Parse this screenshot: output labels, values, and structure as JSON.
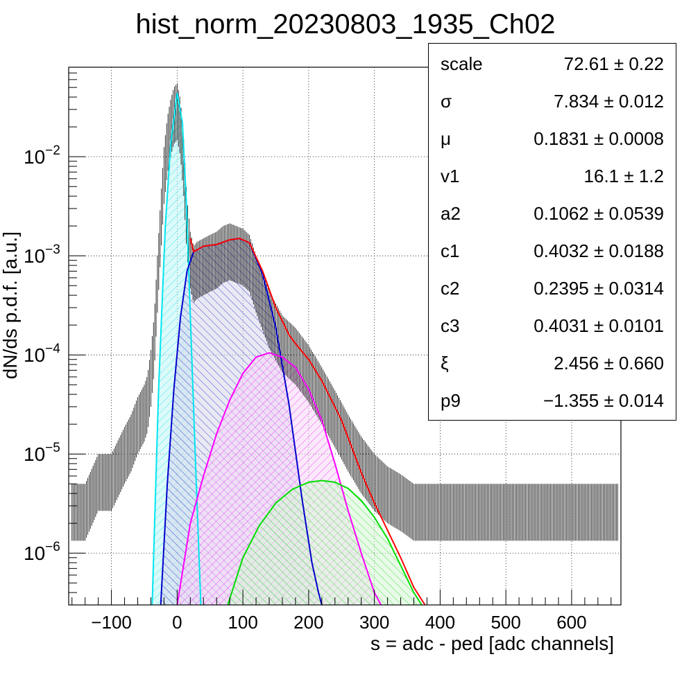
{
  "chart_data": {
    "type": "line",
    "title": "hist_norm_20230803_1935_Ch02",
    "xlabel": "s = adc - ped [adc channels]",
    "ylabel": "dN/ds p.d.f. [a.u.]",
    "xlim": [
      -165,
      675
    ],
    "ylim": [
      3e-07,
      0.08
    ],
    "yscale": "log",
    "grid": true,
    "x_ticks": [
      -100,
      0,
      100,
      200,
      300,
      400,
      500,
      600
    ],
    "x_tick_labels": [
      "−100",
      "0",
      "100",
      "200",
      "300",
      "400",
      "500",
      "600"
    ],
    "y_ticks": [
      1e-06,
      1e-05,
      0.0001,
      0.001,
      0.01
    ],
    "y_tick_labels": [
      {
        "base": "10",
        "exp": "−6"
      },
      {
        "base": "10",
        "exp": "−5"
      },
      {
        "base": "10",
        "exp": "−4"
      },
      {
        "base": "10",
        "exp": "−3"
      },
      {
        "base": "10",
        "exp": "−2"
      }
    ],
    "series": [
      {
        "color": "#00e5ee",
        "fill": "#bff6f6",
        "x": [
          -38,
          -28,
          -18,
          -10,
          0,
          8,
          14,
          20,
          28,
          36
        ],
        "y": [
          3e-07,
          5e-05,
          0.002,
          0.013,
          0.044,
          0.022,
          0.0035,
          0.00025,
          8e-06,
          3e-07
        ]
      },
      {
        "color": "#0000cc",
        "fill": "#d6d6ea",
        "x": [
          -25,
          -15,
          -5,
          5,
          15,
          25,
          40,
          60,
          80,
          95,
          110,
          130,
          150,
          170,
          190,
          205,
          215,
          220
        ],
        "y": [
          3e-07,
          5e-06,
          4.5e-05,
          0.00024,
          0.0007,
          0.0011,
          0.00125,
          0.0013,
          0.00145,
          0.0015,
          0.00135,
          0.00065,
          0.00019,
          3.2e-05,
          3.5e-06,
          8e-07,
          4e-07,
          3e-07
        ]
      },
      {
        "color": "#ff00ff",
        "fill": "#f5d6f5",
        "x": [
          0,
          20,
          40,
          60,
          80,
          100,
          120,
          140,
          160,
          180,
          200,
          220,
          240,
          260,
          280,
          300,
          310
        ],
        "y": [
          3e-07,
          2e-06,
          6e-06,
          1.6e-05,
          3.5e-05,
          6.5e-05,
          9.5e-05,
          0.000105,
          9.5e-05,
          7.5e-05,
          4.5e-05,
          2.2e-05,
          8e-06,
          2.7e-06,
          1e-06,
          4e-07,
          3e-07
        ]
      },
      {
        "color": "#00dd00",
        "fill": "#d6f5d6",
        "x": [
          77,
          100,
          125,
          150,
          175,
          200,
          220,
          240,
          260,
          280,
          300,
          320,
          340,
          360,
          372
        ],
        "y": [
          3e-07,
          9e-07,
          1.9e-06,
          3.2e-06,
          4.4e-06,
          5.2e-06,
          5.4e-06,
          5.2e-06,
          4.5e-06,
          3.4e-06,
          2.3e-06,
          1.4e-06,
          7.5e-07,
          4e-07,
          3e-07
        ]
      },
      {
        "color": "#ff0000",
        "fill": null,
        "x": [
          20,
          25,
          40,
          60,
          80,
          95,
          110,
          130,
          150,
          170,
          180,
          200,
          220,
          250,
          280,
          300,
          320,
          340,
          360,
          377
        ],
        "y": [
          0.0015,
          0.0011,
          0.00125,
          0.0013,
          0.00145,
          0.0015,
          0.00135,
          0.0007,
          0.0003,
          0.00016,
          0.00013,
          9e-05,
          5.5e-05,
          2.2e-05,
          6.5e-06,
          3.2e-06,
          1.7e-06,
          9e-07,
          4.5e-07,
          3e-07
        ]
      }
    ],
    "data_envelope": {
      "x": [
        -160,
        -140,
        -120,
        -100,
        -80,
        -70,
        -60,
        -50,
        -45,
        -40,
        -35,
        -30,
        -25,
        -20,
        -15,
        -10,
        -5,
        0,
        5,
        10,
        15,
        20,
        25,
        30,
        40,
        50,
        60,
        70,
        80,
        90,
        100,
        110,
        120,
        140,
        160,
        180,
        200,
        220,
        240,
        260,
        280,
        300,
        320,
        340,
        360,
        380,
        400,
        420,
        440,
        460,
        480,
        500,
        520,
        540,
        560,
        580,
        600,
        620,
        640,
        660
      ],
      "y": [
        4e-06,
        4e-06,
        8e-06,
        8e-06,
        1.5e-05,
        2e-05,
        3e-05,
        4e-05,
        5e-05,
        9e-05,
        0.0002,
        0.0008,
        0.003,
        0.01,
        0.02,
        0.03,
        0.04,
        0.044,
        0.03,
        0.012,
        0.003,
        0.0014,
        0.001,
        0.0011,
        0.0012,
        0.0013,
        0.0014,
        0.0016,
        0.0017,
        0.0016,
        0.0015,
        0.0013,
        0.0008,
        0.00035,
        0.0002,
        0.00015,
        0.0001,
        6e-05,
        3.5e-05,
        2e-05,
        1.2e-05,
        8e-06,
        6e-06,
        5e-06,
        4e-06,
        4e-06,
        4e-06,
        4e-06,
        4e-06,
        4e-06,
        4e-06,
        4e-06,
        4e-06,
        4e-06,
        4e-06,
        4e-06,
        4e-06,
        4e-06,
        4e-06,
        4e-06
      ]
    }
  },
  "stats": [
    {
      "name": "scale",
      "value": "72.61 ± 0.22"
    },
    {
      "name": "σ",
      "value": "7.834 ± 0.012"
    },
    {
      "name": "μ",
      "value": "0.1831 ± 0.0008"
    },
    {
      "name": "v1",
      "value": "16.1 ± 1.2"
    },
    {
      "name": "a2",
      "value": "0.1062 ± 0.0539"
    },
    {
      "name": "c1",
      "value": "0.4032 ± 0.0188"
    },
    {
      "name": "c2",
      "value": "0.2395 ± 0.0314"
    },
    {
      "name": "c3",
      "value": "0.4031 ± 0.0101"
    },
    {
      "name": "ξ",
      "value": "2.456 ± 0.660"
    },
    {
      "name": "p9",
      "value": "−1.355 ± 0.014"
    }
  ]
}
